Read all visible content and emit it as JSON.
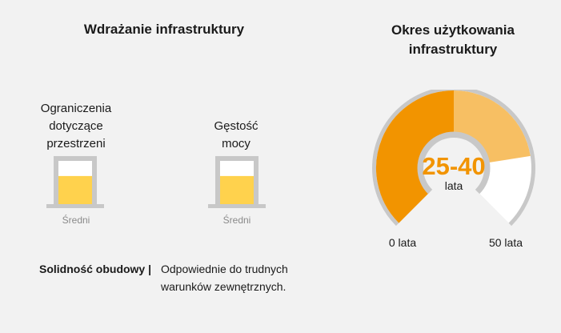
{
  "deployment": {
    "title": "Wdrażanie infrastruktury",
    "items": [
      {
        "label_lines": [
          "Ograniczenia",
          "dotyczące",
          "przestrzeni"
        ],
        "level_label": "Średni",
        "fill_fraction": 0.65
      },
      {
        "label_lines": [
          "Gęstość",
          "mocy"
        ],
        "level_label": "Średni",
        "fill_fraction": 0.65
      }
    ],
    "robustness": {
      "key": "Solidność obudowy |",
      "value_lines": [
        "Odpowiednie do trudnych",
        "warunków zewnętrznych."
      ]
    }
  },
  "lifetime": {
    "title_lines": [
      "Okres użytkowania",
      "infrastruktury"
    ],
    "value": "25-40",
    "unit": "lata",
    "min_label": "0 lata",
    "max_label": "50 lata",
    "range": [
      0,
      50
    ],
    "low": 25,
    "high": 40
  },
  "colors": {
    "background": "#f2f2f2",
    "container_gray": "#c8c8c8",
    "fill_yellow": "#ffd24d",
    "gauge_dark": "#f29400",
    "gauge_light": "#f7bf63",
    "gauge_empty": "#ffffff"
  }
}
